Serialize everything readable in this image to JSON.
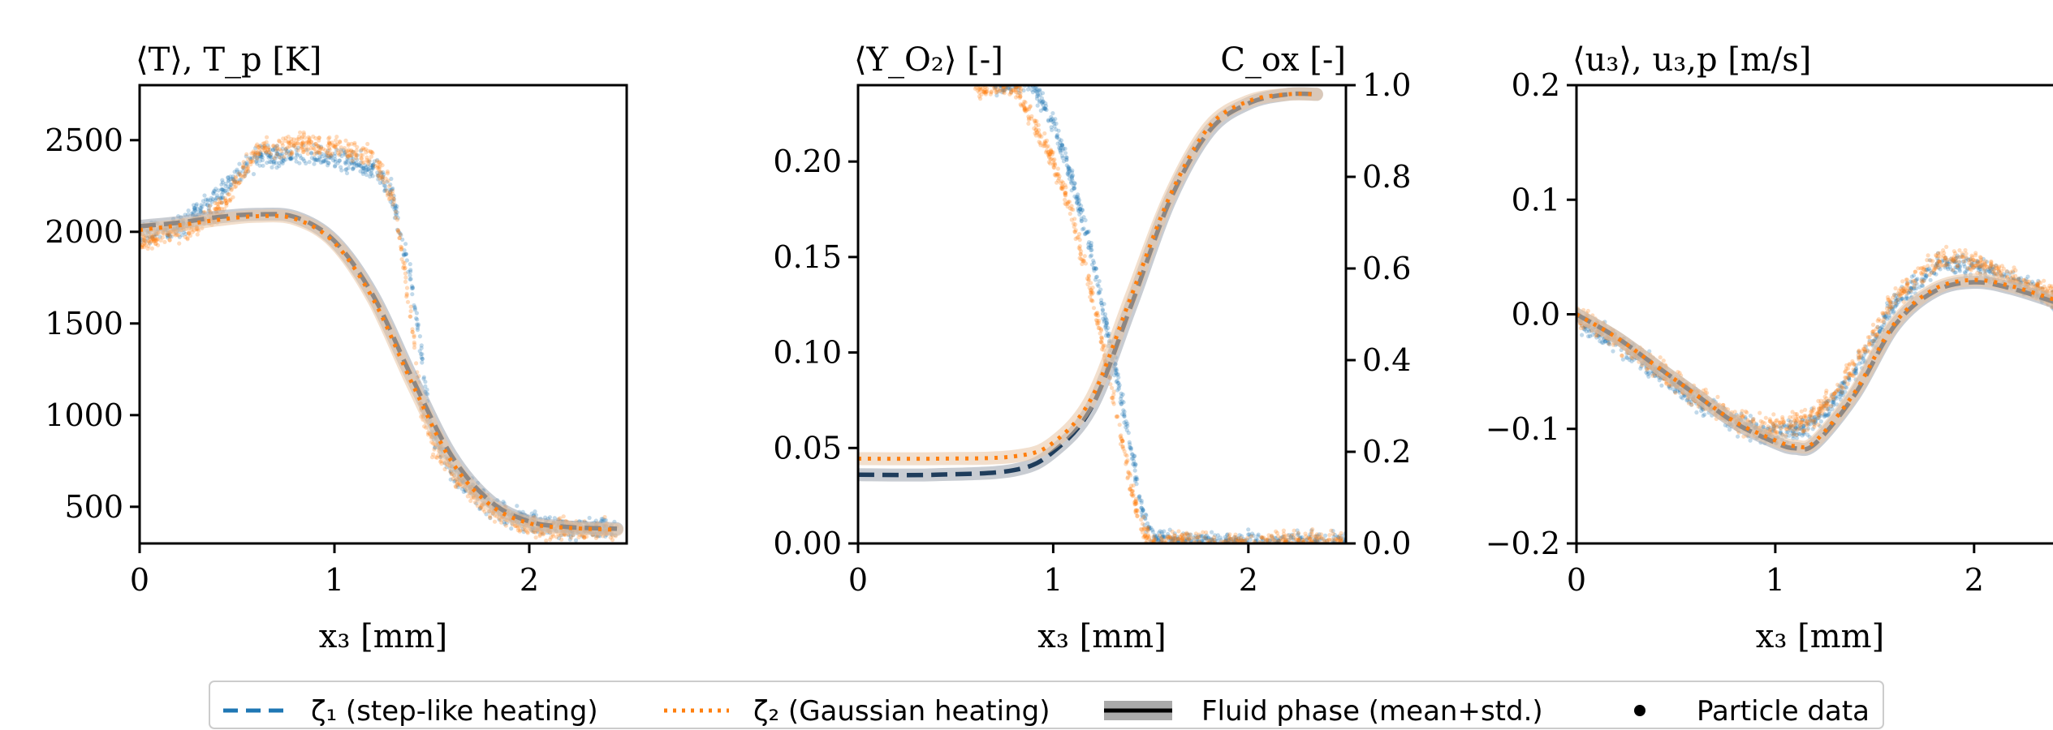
{
  "colors": {
    "zeta1": "#1f77b4",
    "zeta2": "#ff7f0e",
    "fluid_line": "#000000",
    "fluid_band": "#aaaaaa",
    "dark_blue": "#1f3d5c"
  },
  "legend": {
    "items": [
      {
        "label": "ζ₁ (step-like heating)",
        "style": "dashed",
        "color": "#1f77b4"
      },
      {
        "label": "ζ₂ (Gaussian heating)",
        "style": "dotted",
        "color": "#ff7f0e"
      },
      {
        "label": "Fluid phase (mean+std.)",
        "style": "band",
        "color": "#000000"
      },
      {
        "label": "Particle data",
        "style": "dot",
        "color": "#000000"
      }
    ]
  },
  "chart_data": [
    {
      "type": "line",
      "title": "⟨T⟩, T_p [K]",
      "xlabel": "x₃ [mm]",
      "ylabel": "",
      "xlim": [
        0,
        2.5
      ],
      "ylim": [
        300,
        2800
      ],
      "xticks": [
        0,
        1,
        2
      ],
      "yticks": [
        500,
        1000,
        1500,
        2000,
        2500
      ],
      "series": [
        {
          "name": "ζ₁ (step-like heating)",
          "x": [
            0,
            0.2,
            0.4,
            0.6,
            0.8,
            1.0,
            1.2,
            1.4,
            1.6,
            1.8,
            2.0,
            2.2,
            2.45
          ],
          "values": [
            2030,
            2050,
            2080,
            2095,
            2080,
            1950,
            1650,
            1200,
            780,
            530,
            420,
            390,
            380
          ]
        },
        {
          "name": "ζ₂ (Gaussian heating)",
          "x": [
            0,
            0.2,
            0.4,
            0.6,
            0.8,
            1.0,
            1.2,
            1.4,
            1.6,
            1.8,
            2.0,
            2.2,
            2.45
          ],
          "values": [
            2010,
            2035,
            2065,
            2085,
            2070,
            1940,
            1630,
            1170,
            750,
            510,
            410,
            385,
            375
          ]
        }
      ],
      "particle_data": [
        {
          "name": "ζ₁ (step-like heating)",
          "x": [
            0.0,
            0.2,
            0.4,
            0.6,
            0.8,
            1.0,
            1.2,
            1.3,
            1.4,
            1.45,
            1.5,
            1.6,
            1.8,
            2.0,
            2.2,
            2.45
          ],
          "values": [
            1990,
            2020,
            2200,
            2400,
            2420,
            2400,
            2350,
            2200,
            1700,
            1300,
            900,
            700,
            500,
            410,
            385,
            375
          ]
        },
        {
          "name": "ζ₂ (Gaussian heating)",
          "x": [
            0.0,
            0.2,
            0.4,
            0.6,
            0.8,
            1.0,
            1.2,
            1.3,
            1.4,
            1.45,
            1.5,
            1.6,
            1.8,
            2.0,
            2.2,
            2.45
          ],
          "values": [
            1950,
            2000,
            2100,
            2450,
            2480,
            2460,
            2400,
            2200,
            1500,
            1000,
            850,
            680,
            480,
            400,
            380,
            370
          ]
        }
      ]
    },
    {
      "type": "line",
      "title": "⟨Y_O₂⟩ [-]",
      "title_right": "C_ox [-]",
      "xlabel": "x₃ [mm]",
      "ylabel": "",
      "xlim": [
        0,
        2.5
      ],
      "ylim": [
        0,
        0.24
      ],
      "ylim_right": [
        0,
        1.0
      ],
      "xticks": [
        0,
        1,
        2
      ],
      "yticks": [
        "0.00",
        "0.05",
        "0.10",
        "0.15",
        "0.20"
      ],
      "yticks_right": [
        "0.0",
        "0.2",
        "0.4",
        "0.6",
        "0.8",
        "1.0"
      ],
      "series": [
        {
          "name": "ζ₁ (step-like heating)",
          "axis": "right",
          "x": [
            0,
            0.4,
            0.8,
            1.0,
            1.2,
            1.4,
            1.6,
            1.8,
            2.0,
            2.2,
            2.35
          ],
          "values": [
            0.15,
            0.15,
            0.16,
            0.2,
            0.3,
            0.52,
            0.75,
            0.9,
            0.96,
            0.98,
            0.98
          ]
        },
        {
          "name": "ζ₂ (Gaussian heating)",
          "axis": "right",
          "x": [
            0,
            0.4,
            0.8,
            1.0,
            1.2,
            1.4,
            1.6,
            1.8,
            2.0,
            2.2,
            2.35
          ],
          "values": [
            0.185,
            0.185,
            0.19,
            0.22,
            0.32,
            0.54,
            0.76,
            0.91,
            0.965,
            0.98,
            0.98
          ]
        }
      ],
      "particle_data": [
        {
          "name": "ζ₁ (step-like heating)",
          "x": [
            0.7,
            0.9,
            1.0,
            1.1,
            1.2,
            1.3,
            1.4,
            1.45,
            1.5,
            1.6,
            2.0,
            2.5
          ],
          "values": [
            0.24,
            0.24,
            0.22,
            0.19,
            0.15,
            0.1,
            0.05,
            0.02,
            0.005,
            0.0,
            0.0,
            0.0
          ]
        },
        {
          "name": "ζ₂ (Gaussian heating)",
          "x": [
            0.6,
            0.8,
            0.9,
            1.0,
            1.1,
            1.2,
            1.3,
            1.4,
            1.45,
            1.5,
            2.0,
            2.5
          ],
          "values": [
            0.24,
            0.24,
            0.22,
            0.2,
            0.17,
            0.13,
            0.08,
            0.03,
            0.01,
            0.0,
            0.0,
            0.0
          ]
        }
      ]
    },
    {
      "type": "line",
      "title": "⟨u₃⟩, u₃,p [m/s]",
      "xlabel": "x₃ [mm]",
      "ylabel": "",
      "xlim": [
        0,
        2.45
      ],
      "ylim": [
        -0.2,
        0.2
      ],
      "xticks": [
        0,
        1,
        2
      ],
      "yticks": [
        "−0.2",
        "−0.1",
        "0.0",
        "0.1",
        "0.2"
      ],
      "series": [
        {
          "name": "ζ₁ (step-like heating)",
          "x": [
            0,
            0.2,
            0.4,
            0.6,
            0.8,
            1.0,
            1.1,
            1.2,
            1.4,
            1.6,
            1.8,
            2.0,
            2.2,
            2.45
          ],
          "values": [
            0.0,
            -0.02,
            -0.045,
            -0.07,
            -0.095,
            -0.112,
            -0.117,
            -0.113,
            -0.07,
            -0.01,
            0.02,
            0.028,
            0.022,
            0.008
          ]
        },
        {
          "name": "ζ₂ (Gaussian heating)",
          "x": [
            0,
            0.2,
            0.4,
            0.6,
            0.8,
            1.0,
            1.1,
            1.2,
            1.4,
            1.6,
            1.8,
            2.0,
            2.2,
            2.45
          ],
          "values": [
            0.0,
            -0.02,
            -0.045,
            -0.07,
            -0.094,
            -0.11,
            -0.115,
            -0.111,
            -0.068,
            -0.008,
            0.022,
            0.03,
            0.024,
            0.01
          ]
        }
      ],
      "particle_data": [
        {
          "name": "ζ₁ (step-like heating)",
          "x": [
            0,
            0.2,
            0.4,
            0.6,
            0.8,
            1.0,
            1.2,
            1.4,
            1.6,
            1.8,
            1.9,
            2.0,
            2.2,
            2.45
          ],
          "values": [
            -0.005,
            -0.025,
            -0.05,
            -0.075,
            -0.095,
            -0.105,
            -0.095,
            -0.05,
            0.01,
            0.04,
            0.045,
            0.042,
            0.03,
            0.01
          ]
        },
        {
          "name": "ζ₂ (Gaussian heating)",
          "x": [
            0,
            0.2,
            0.4,
            0.6,
            0.8,
            1.0,
            1.2,
            1.4,
            1.6,
            1.8,
            1.9,
            2.0,
            2.2,
            2.45
          ],
          "values": [
            0.0,
            -0.022,
            -0.047,
            -0.072,
            -0.092,
            -0.1,
            -0.09,
            -0.045,
            0.015,
            0.045,
            0.05,
            0.046,
            0.032,
            0.01
          ]
        }
      ]
    }
  ]
}
